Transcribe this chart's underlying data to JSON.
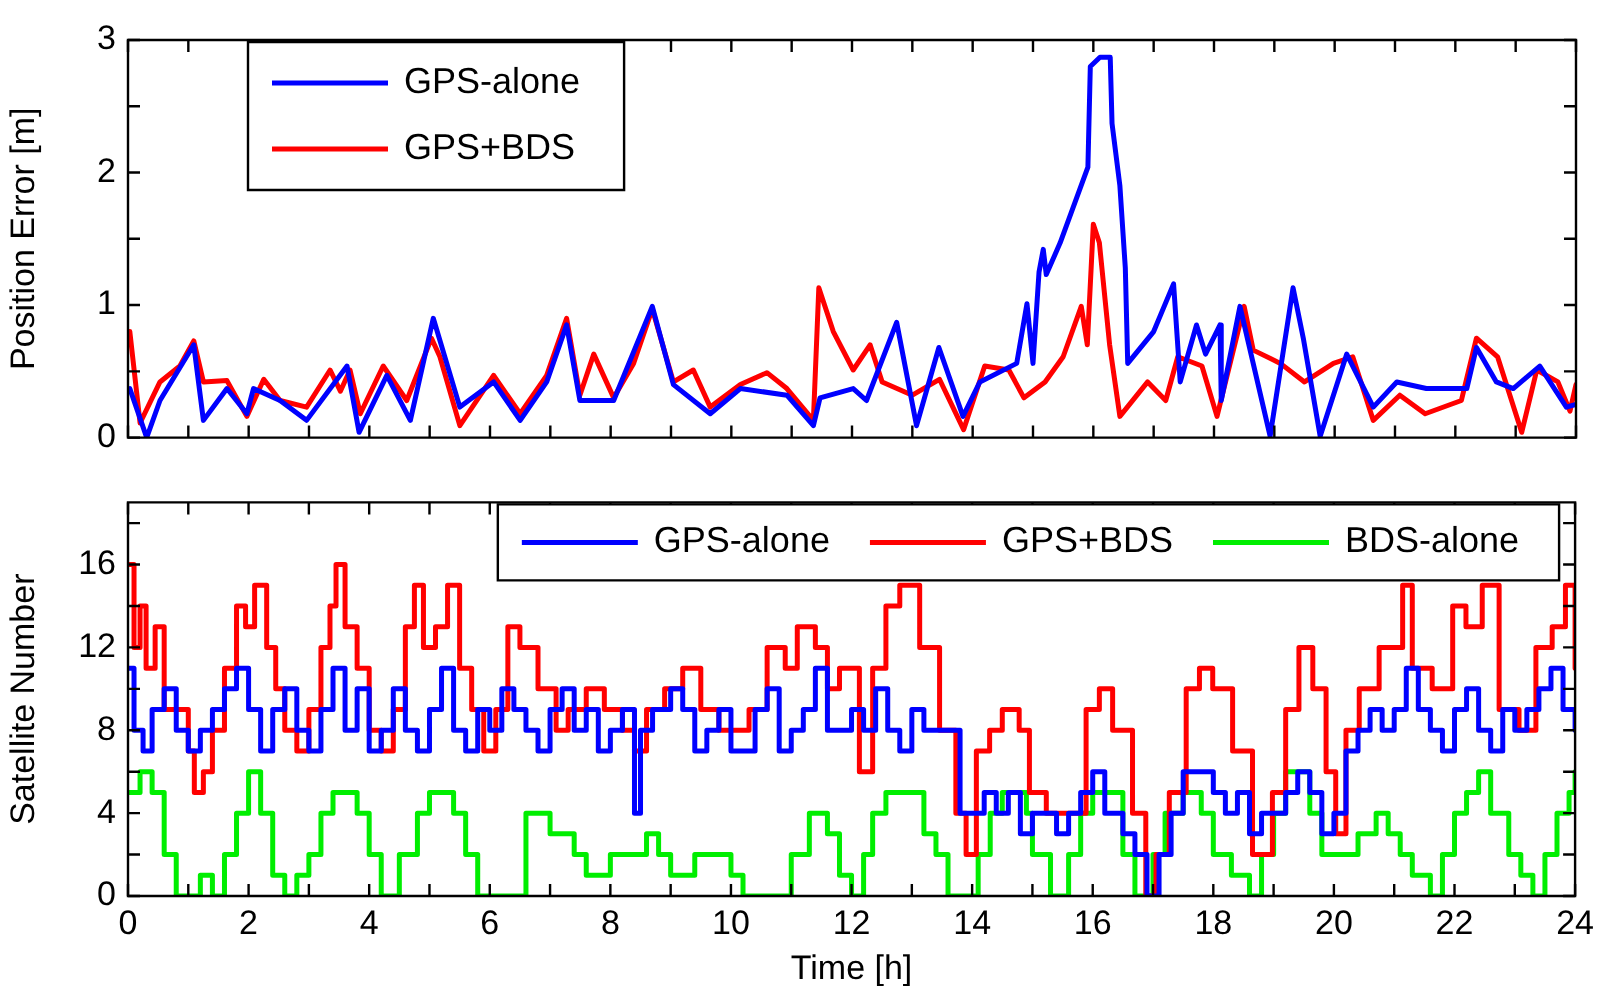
{
  "chart_data": [
    {
      "type": "line",
      "ylabel": "Position Error [m]",
      "legend": "top left",
      "tick_labels": "y",
      "marker": "none",
      "xlim": [
        0,
        24
      ],
      "ylim": [
        0,
        3
      ],
      "xticks": [
        0,
        {
          "value": 1,
          "label": null
        },
        2,
        {
          "value": 3,
          "label": null
        },
        4,
        {
          "value": 5,
          "label": null
        },
        6,
        {
          "value": 7,
          "label": null
        },
        8,
        {
          "value": 9,
          "label": null
        },
        10,
        {
          "value": 11,
          "label": null
        },
        12,
        {
          "value": 13,
          "label": null
        },
        14,
        {
          "value": 15,
          "label": null
        },
        16,
        {
          "value": 17,
          "label": null
        },
        18,
        {
          "value": 19,
          "label": null
        },
        20,
        {
          "value": 21,
          "label": null
        },
        22,
        {
          "value": 23,
          "label": null
        },
        24
      ],
      "yticks": [
        0,
        {
          "value": 0.5,
          "label": null
        },
        1,
        {
          "value": 1.5,
          "label": null
        },
        2,
        {
          "value": 2.5,
          "label": null
        },
        3
      ],
      "series": [
        {
          "name": "GPS-alone",
          "color": "#0000ff",
          "x": [
            0.03,
            0.31,
            0.53,
            1.09,
            1.25,
            1.64,
            1.97,
            2.08,
            2.52,
            2.96,
            3.63,
            3.83,
            4.29,
            4.68,
            5.06,
            5.5,
            6.06,
            6.5,
            6.94,
            7.27,
            7.49,
            8.05,
            8.69,
            9.04,
            9.65,
            10.15,
            10.92,
            11.36,
            11.47,
            12.02,
            12.24,
            12.74,
            13.07,
            13.44,
            13.84,
            14.12,
            14.73,
            14.9,
            15.0,
            15.1,
            15.17,
            15.22,
            15.45,
            15.91,
            15.95,
            16.11,
            16.28,
            16.31,
            16.44,
            16.53,
            16.57,
            17.0,
            17.33,
            17.44,
            17.71,
            17.86,
            18.1,
            18.12,
            18.43,
            18.93,
            19.31,
            19.48,
            19.76,
            20.2,
            20.64,
            21.03,
            21.52,
            22.19,
            22.35,
            22.68,
            22.96,
            23.4,
            23.84,
            24
          ],
          "values": [
            0.37,
            0,
            0.28,
            0.7,
            0.13,
            0.37,
            0.18,
            0.37,
            0.28,
            0.13,
            0.54,
            0.04,
            0.47,
            0.13,
            0.9,
            0.23,
            0.42,
            0.13,
            0.42,
            0.85,
            0.28,
            0.28,
            0.99,
            0.4,
            0.18,
            0.37,
            0.32,
            0.09,
            0.3,
            0.37,
            0.28,
            0.87,
            0.09,
            0.68,
            0.16,
            0.42,
            0.56,
            1.01,
            0.56,
            1.25,
            1.42,
            1.23,
            1.47,
            2.04,
            2.8,
            2.87,
            2.87,
            2.37,
            1.9,
            1.28,
            0.56,
            0.8,
            1.16,
            0.42,
            0.85,
            0.63,
            0.85,
            0.28,
            0.99,
            0.01,
            1.13,
            0.75,
            0.01,
            0.63,
            0.23,
            0.42,
            0.37,
            0.37,
            0.68,
            0.42,
            0.37,
            0.54,
            0.23,
            0.25
          ]
        },
        {
          "name": "GPS+BDS",
          "color": "#ff0000",
          "x": [
            0.03,
            0.2,
            0.53,
            0.86,
            1.09,
            1.25,
            1.64,
            1.97,
            2.25,
            2.52,
            2.96,
            3.35,
            3.52,
            3.68,
            3.85,
            4.23,
            4.62,
            5.03,
            5.17,
            5.5,
            6.06,
            6.5,
            6.94,
            7.27,
            7.49,
            7.72,
            8.05,
            8.38,
            8.69,
            9.04,
            9.37,
            9.65,
            10.15,
            10.59,
            10.92,
            11.36,
            11.45,
            11.69,
            12.02,
            12.3,
            12.5,
            13.0,
            13.45,
            13.85,
            14.2,
            14.6,
            14.85,
            15.2,
            15.5,
            15.8,
            15.9,
            16.0,
            16.1,
            16.27,
            16.44,
            16.9,
            17.2,
            17.4,
            17.8,
            18.05,
            18.5,
            18.65,
            19.1,
            19.5,
            19.98,
            20.3,
            20.64,
            21.08,
            21.5,
            22.1,
            22.35,
            22.7,
            23.1,
            23.35,
            23.7,
            23.9,
            24
          ],
          "values": [
            0.8,
            0.11,
            0.42,
            0.54,
            0.73,
            0.42,
            0.43,
            0.16,
            0.44,
            0.28,
            0.23,
            0.51,
            0.35,
            0.51,
            0.18,
            0.54,
            0.28,
            0.75,
            0.61,
            0.09,
            0.47,
            0.18,
            0.47,
            0.9,
            0.32,
            0.63,
            0.3,
            0.56,
            0.97,
            0.42,
            0.51,
            0.23,
            0.4,
            0.49,
            0.37,
            0.13,
            1.13,
            0.8,
            0.51,
            0.7,
            0.42,
            0.32,
            0.44,
            0.06,
            0.54,
            0.51,
            0.3,
            0.42,
            0.61,
            0.99,
            0.7,
            1.61,
            1.47,
            0.7,
            0.16,
            0.42,
            0.28,
            0.61,
            0.54,
            0.16,
            0.99,
            0.66,
            0.56,
            0.42,
            0.56,
            0.61,
            0.13,
            0.32,
            0.18,
            0.28,
            0.75,
            0.61,
            0.04,
            0.51,
            0.42,
            0.2,
            0.4
          ]
        }
      ]
    },
    {
      "type": "step",
      "ylabel": "Satellite Number",
      "xlabel": "Time [h]",
      "legend": "top right",
      "marker": "none",
      "xlim": [
        0,
        24
      ],
      "ylim": [
        0,
        19
      ],
      "xticks": [
        0,
        {
          "value": 1,
          "label": null
        },
        2,
        {
          "value": 3,
          "label": null
        },
        4,
        {
          "value": 5,
          "label": null
        },
        6,
        {
          "value": 7,
          "label": null
        },
        8,
        {
          "value": 9,
          "label": null
        },
        10,
        {
          "value": 11,
          "label": null
        },
        12,
        {
          "value": 13,
          "label": null
        },
        14,
        {
          "value": 15,
          "label": null
        },
        16,
        {
          "value": 17,
          "label": null
        },
        18,
        {
          "value": 19,
          "label": null
        },
        20,
        {
          "value": 21,
          "label": null
        },
        22,
        {
          "value": 23,
          "label": null
        },
        24
      ],
      "yticks": [
        0,
        {
          "value": 2,
          "label": null
        },
        4,
        {
          "value": 6,
          "label": null
        },
        8,
        {
          "value": 10,
          "label": null
        },
        12,
        {
          "value": 14,
          "label": null
        },
        16,
        {
          "value": 18,
          "label": null
        }
      ],
      "series": [
        {
          "name": "GPS-alone",
          "color": "#0000ff",
          "x": [
            0,
            0.1,
            0.25,
            0.4,
            0.6,
            0.8,
            1.0,
            1.2,
            1.4,
            1.6,
            1.8,
            2.0,
            2.2,
            2.4,
            2.6,
            2.8,
            3.0,
            3.2,
            3.4,
            3.6,
            3.8,
            4.0,
            4.2,
            4.4,
            4.6,
            4.8,
            5.0,
            5.2,
            5.4,
            5.6,
            5.8,
            6.0,
            6.2,
            6.4,
            6.6,
            6.8,
            7.0,
            7.2,
            7.4,
            7.6,
            7.8,
            8.0,
            8.2,
            8.4,
            8.5,
            8.7,
            9.0,
            9.2,
            9.4,
            9.6,
            9.8,
            10.0,
            10.2,
            10.4,
            10.6,
            10.8,
            11.0,
            11.2,
            11.4,
            11.6,
            12.0,
            12.2,
            12.4,
            12.6,
            12.8,
            13.0,
            13.2,
            13.5,
            13.8,
            14.0,
            14.2,
            14.4,
            14.6,
            14.8,
            15.0,
            15.4,
            15.6,
            15.8,
            16.0,
            16.2,
            16.5,
            16.7,
            16.9,
            17.1,
            17.3,
            17.5,
            18.0,
            18.2,
            18.4,
            18.6,
            18.8,
            19.2,
            19.4,
            19.6,
            19.8,
            20.0,
            20.2,
            20.4,
            20.6,
            20.8,
            21.0,
            21.2,
            21.4,
            21.6,
            21.8,
            22.0,
            22.2,
            22.4,
            22.6,
            22.8,
            23.0,
            23.2,
            23.4,
            23.6,
            23.8,
            24.0
          ],
          "values": [
            11,
            8,
            7,
            9,
            10,
            8,
            7,
            8,
            9,
            10,
            11,
            9,
            7,
            9,
            10,
            8,
            7,
            9,
            11,
            8,
            10,
            7,
            8,
            10,
            8,
            7,
            9,
            11,
            8,
            7,
            9,
            8,
            10,
            9,
            8,
            7,
            9,
            10,
            8,
            9,
            7,
            8,
            9,
            4,
            8,
            9,
            10,
            9,
            7,
            8,
            9,
            7,
            7,
            9,
            10,
            7,
            8,
            9,
            11,
            8,
            9,
            8,
            10,
            8,
            7,
            9,
            8,
            8,
            4,
            4,
            5,
            4,
            5,
            3,
            4,
            3,
            4,
            5,
            6,
            4,
            3,
            2,
            0,
            2,
            4,
            6,
            5,
            4,
            5,
            3,
            4,
            5,
            6,
            5,
            3,
            4,
            7,
            8,
            9,
            8,
            9,
            11,
            9,
            8,
            7,
            9,
            10,
            8,
            7,
            9,
            8,
            9,
            10,
            11,
            9,
            8
          ]
        },
        {
          "name": "GPS+BDS",
          "color": "#ff0000",
          "x": [
            0,
            0.1,
            0.2,
            0.3,
            0.45,
            0.6,
            0.8,
            1.0,
            1.1,
            1.25,
            1.4,
            1.6,
            1.8,
            1.95,
            2.1,
            2.3,
            2.45,
            2.6,
            2.8,
            3.0,
            3.2,
            3.35,
            3.45,
            3.6,
            3.8,
            4.0,
            4.2,
            4.4,
            4.6,
            4.75,
            4.9,
            5.1,
            5.3,
            5.5,
            5.7,
            5.9,
            6.1,
            6.3,
            6.5,
            6.8,
            7.1,
            7.3,
            7.6,
            7.9,
            8.2,
            8.4,
            8.6,
            8.9,
            9.2,
            9.5,
            9.8,
            10.0,
            10.3,
            10.6,
            10.9,
            11.1,
            11.4,
            11.6,
            11.8,
            12.13,
            12.35,
            12.57,
            12.8,
            13.13,
            13.46,
            13.73,
            13.9,
            14.07,
            14.29,
            14.5,
            14.78,
            14.95,
            15.23,
            15.67,
            15.89,
            16.11,
            16.33,
            16.66,
            16.88,
            17.05,
            17.27,
            17.55,
            17.77,
            17.99,
            18.32,
            18.65,
            18.98,
            19.2,
            19.42,
            19.65,
            19.87,
            20.03,
            20.2,
            20.42,
            20.75,
            21.14,
            21.3,
            21.63,
            21.97,
            22.19,
            22.46,
            22.74,
            23.07,
            23.35,
            23.62,
            23.84,
            24
          ],
          "values": [
            16,
            12,
            14,
            11,
            13,
            9,
            9,
            7,
            5,
            6,
            8,
            11,
            14,
            13,
            15,
            12,
            10,
            8,
            7,
            9,
            12,
            14,
            16,
            13,
            11,
            8,
            7,
            9,
            13,
            15,
            12,
            13,
            15,
            11,
            9,
            7,
            9,
            13,
            12,
            10,
            8,
            9,
            10,
            9,
            8,
            7,
            9,
            10,
            11,
            9,
            8,
            8,
            9,
            12,
            11,
            13,
            12,
            10,
            11,
            6,
            11,
            14,
            15,
            12,
            8,
            4,
            2,
            7,
            8,
            9,
            8,
            5,
            4,
            4,
            9,
            10,
            8,
            4,
            0,
            2,
            5,
            10,
            11,
            10,
            7,
            2,
            5,
            9,
            12,
            10,
            6,
            3,
            8,
            10,
            12,
            15,
            11,
            10,
            14,
            13,
            15,
            9,
            8,
            12,
            13,
            15,
            11
          ]
        },
        {
          "name": "BDS-alone",
          "color": "#00ee00",
          "x": [
            0,
            0.2,
            0.4,
            0.6,
            0.8,
            1.2,
            1.4,
            1.6,
            1.8,
            2.0,
            2.2,
            2.4,
            2.6,
            2.8,
            3.0,
            3.2,
            3.4,
            3.8,
            4.0,
            4.2,
            4.5,
            4.8,
            5.0,
            5.4,
            5.6,
            5.8,
            6.6,
            7.0,
            7.4,
            7.6,
            8.0,
            8.4,
            8.6,
            8.8,
            9.0,
            9.4,
            10.0,
            10.2,
            11.0,
            11.3,
            11.6,
            11.8,
            12.0,
            12.2,
            12.35,
            12.57,
            12.8,
            13.2,
            13.4,
            13.6,
            14.1,
            14.3,
            14.5,
            14.9,
            15.0,
            15.3,
            15.6,
            15.8,
            16.0,
            16.5,
            16.7,
            17.0,
            17.2,
            17.5,
            17.8,
            18.0,
            18.3,
            18.6,
            18.8,
            19.0,
            19.2,
            19.6,
            19.8,
            20.1,
            20.4,
            20.7,
            20.9,
            21.1,
            21.3,
            21.6,
            21.8,
            22.0,
            22.2,
            22.4,
            22.6,
            22.9,
            23.1,
            23.3,
            23.5,
            23.7,
            23.9,
            24.0
          ],
          "values": [
            5,
            6,
            5,
            2,
            0,
            1,
            0,
            2,
            4,
            6,
            4,
            1,
            0,
            1,
            2,
            4,
            5,
            4,
            2,
            0,
            2,
            4,
            5,
            4,
            2,
            0,
            4,
            3,
            2,
            1,
            2,
            2,
            3,
            2,
            1,
            2,
            1,
            0,
            2,
            4,
            3,
            1,
            0,
            2,
            4,
            5,
            5,
            3,
            2,
            0,
            2,
            4,
            5,
            4,
            2,
            0,
            2,
            4,
            5,
            2,
            0,
            2,
            4,
            5,
            4,
            2,
            1,
            0,
            2,
            4,
            6,
            4,
            2,
            2,
            3,
            4,
            3,
            2,
            1,
            0,
            2,
            4,
            5,
            6,
            4,
            2,
            1,
            0,
            2,
            4,
            5,
            6
          ]
        }
      ]
    }
  ]
}
